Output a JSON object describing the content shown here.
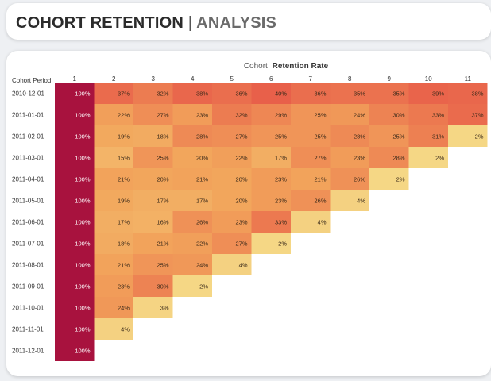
{
  "header": {
    "title": "COHORT RETENTION",
    "separator": "|",
    "subtitle": "ANALYSIS"
  },
  "chart_data": {
    "type": "heatmap",
    "title_prefix": "Cohort",
    "title_bold": "Retention Rate",
    "row_header": "Cohort Period",
    "columns": [
      "1",
      "2",
      "3",
      "4",
      "5",
      "6",
      "7",
      "8",
      "9",
      "10",
      "11"
    ],
    "rows": [
      "2010-12-01",
      "2011-01-01",
      "2011-02-01",
      "2011-03-01",
      "2011-04-01",
      "2011-05-01",
      "2011-06-01",
      "2011-07-01",
      "2011-08-01",
      "2011-09-01",
      "2011-10-01",
      "2011-11-01",
      "2011-12-01"
    ],
    "values": [
      [
        100,
        37,
        32,
        38,
        36,
        40,
        36,
        35,
        35,
        39,
        38
      ],
      [
        100,
        22,
        27,
        23,
        32,
        29,
        25,
        24,
        30,
        33,
        37
      ],
      [
        100,
        19,
        18,
        28,
        27,
        25,
        25,
        28,
        25,
        31,
        2
      ],
      [
        100,
        15,
        25,
        20,
        22,
        17,
        27,
        23,
        28,
        2
      ],
      [
        100,
        21,
        20,
        21,
        20,
        23,
        21,
        26,
        2
      ],
      [
        100,
        19,
        17,
        17,
        20,
        23,
        26,
        4
      ],
      [
        100,
        17,
        16,
        26,
        23,
        33,
        4
      ],
      [
        100,
        18,
        21,
        22,
        27,
        2
      ],
      [
        100,
        21,
        25,
        24,
        4
      ],
      [
        100,
        23,
        30,
        2
      ],
      [
        100,
        24,
        3
      ],
      [
        100,
        4
      ],
      [
        100
      ]
    ],
    "value_suffix": "%",
    "colors": {
      "first_column": "#a8123e",
      "low": "#f5dc8a",
      "mid": "#f2a65c",
      "high": "#e8604a",
      "text_light": "#ffffff",
      "text_dark": "#3a2a1a"
    }
  }
}
